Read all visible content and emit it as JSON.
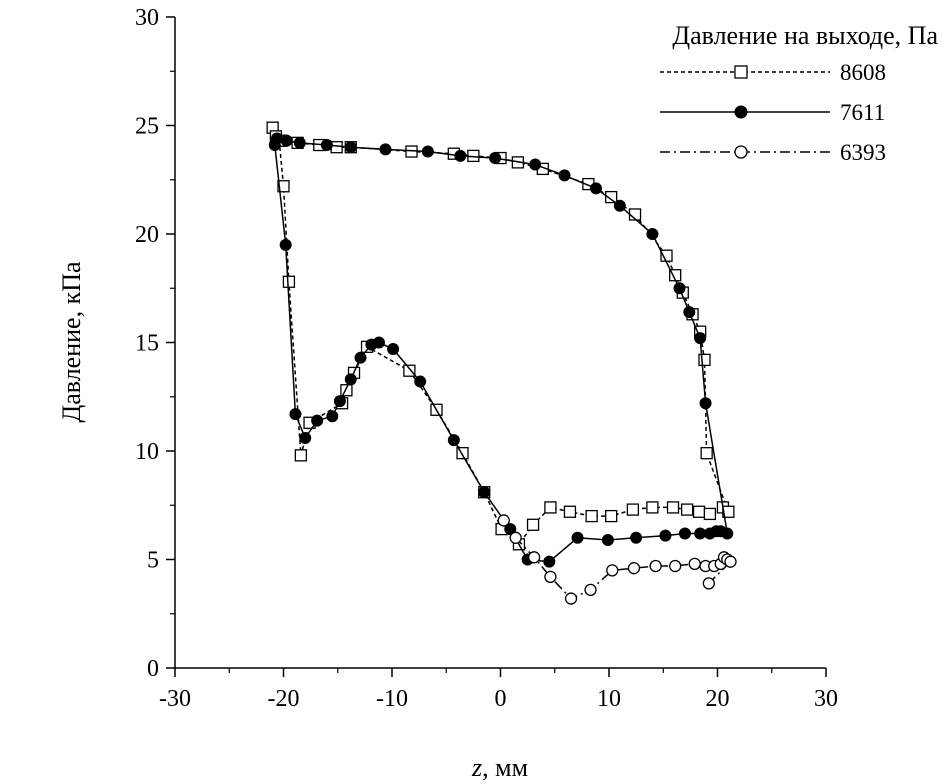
{
  "chart_data": {
    "type": "line",
    "xlabel_var": "z",
    "xlabel_unit": ", мм",
    "ylabel": "Давление, кПа",
    "xlim": [
      -30,
      30
    ],
    "ylim": [
      0,
      30
    ],
    "xticks": [
      -30,
      -20,
      -10,
      0,
      10,
      20,
      30
    ],
    "yticks": [
      0,
      5,
      10,
      15,
      20,
      25,
      30
    ],
    "grid": false,
    "legend": {
      "title": "Давление на выходе, Па",
      "placement": "top-right"
    },
    "series": [
      {
        "name": "8608",
        "line": "dashed",
        "marker": "square-open",
        "points": [
          [
            -21.0,
            24.9
          ],
          [
            -20.7,
            24.5
          ],
          [
            -20.4,
            24.3
          ],
          [
            -20.0,
            22.2
          ],
          [
            -19.5,
            17.8
          ],
          [
            -18.4,
            9.8
          ],
          [
            -17.6,
            11.3
          ],
          [
            -14.6,
            12.2
          ],
          [
            -14.2,
            12.8
          ],
          [
            -13.5,
            13.6
          ],
          [
            -12.3,
            14.8
          ],
          [
            -8.4,
            13.7
          ],
          [
            -5.9,
            11.9
          ],
          [
            -3.5,
            9.9
          ],
          [
            -1.5,
            8.1
          ],
          [
            0.1,
            6.4
          ],
          [
            1.7,
            5.7
          ],
          [
            3.0,
            6.6
          ],
          [
            4.6,
            7.4
          ],
          [
            6.4,
            7.2
          ],
          [
            8.4,
            7.0
          ],
          [
            10.2,
            7.0
          ],
          [
            12.2,
            7.3
          ],
          [
            14.0,
            7.4
          ],
          [
            15.9,
            7.4
          ],
          [
            17.2,
            7.3
          ],
          [
            18.3,
            7.2
          ],
          [
            19.3,
            7.1
          ],
          [
            20.5,
            7.4
          ],
          [
            21.0,
            7.2
          ],
          [
            19.0,
            9.9
          ],
          [
            18.8,
            14.2
          ],
          [
            18.4,
            15.5
          ],
          [
            17.7,
            16.3
          ],
          [
            16.8,
            17.3
          ],
          [
            16.1,
            18.1
          ],
          [
            15.3,
            19.0
          ],
          [
            12.4,
            20.9
          ],
          [
            10.2,
            21.7
          ],
          [
            8.1,
            22.3
          ],
          [
            3.9,
            23.0
          ],
          [
            1.6,
            23.3
          ],
          [
            0.0,
            23.5
          ],
          [
            -2.5,
            23.6
          ],
          [
            -4.3,
            23.7
          ],
          [
            -8.2,
            23.8
          ],
          [
            -13.8,
            24.0
          ],
          [
            -15.1,
            24.0
          ],
          [
            -16.7,
            24.1
          ],
          [
            -18.7,
            24.2
          ],
          [
            -20.2,
            24.3
          ]
        ]
      },
      {
        "name": "7611",
        "line": "solid",
        "marker": "circle-filled",
        "points": [
          [
            -20.8,
            24.1
          ],
          [
            -19.8,
            19.5
          ],
          [
            -18.9,
            11.7
          ],
          [
            -18.0,
            10.6
          ],
          [
            -16.9,
            11.4
          ],
          [
            -15.5,
            11.6
          ],
          [
            -14.8,
            12.3
          ],
          [
            -13.8,
            13.3
          ],
          [
            -12.9,
            14.3
          ],
          [
            -11.9,
            14.9
          ],
          [
            -11.2,
            15.0
          ],
          [
            -9.9,
            14.7
          ],
          [
            -7.4,
            13.2
          ],
          [
            -4.3,
            10.5
          ],
          [
            -1.5,
            8.1
          ],
          [
            0.9,
            6.4
          ],
          [
            2.5,
            5.0
          ],
          [
            4.5,
            4.9
          ],
          [
            7.1,
            6.0
          ],
          [
            9.9,
            5.9
          ],
          [
            12.5,
            6.0
          ],
          [
            15.2,
            6.1
          ],
          [
            17.0,
            6.2
          ],
          [
            18.4,
            6.2
          ],
          [
            19.3,
            6.2
          ],
          [
            19.9,
            6.3
          ],
          [
            20.3,
            6.3
          ],
          [
            20.9,
            6.2
          ],
          [
            18.9,
            12.2
          ],
          [
            18.4,
            15.2
          ],
          [
            17.4,
            16.4
          ],
          [
            16.5,
            17.5
          ],
          [
            14.0,
            20.0
          ],
          [
            11.0,
            21.3
          ],
          [
            8.8,
            22.1
          ],
          [
            5.9,
            22.7
          ],
          [
            3.2,
            23.2
          ],
          [
            -0.5,
            23.5
          ],
          [
            -3.7,
            23.6
          ],
          [
            -6.7,
            23.8
          ],
          [
            -10.6,
            23.9
          ],
          [
            -13.8,
            24.0
          ],
          [
            -16.0,
            24.1
          ],
          [
            -18.5,
            24.2
          ],
          [
            -19.7,
            24.3
          ],
          [
            -20.6,
            24.4
          ]
        ]
      },
      {
        "name": "6393",
        "line": "dashdot",
        "marker": "circle-open",
        "points": [
          [
            0.3,
            6.8
          ],
          [
            1.4,
            6.0
          ],
          [
            3.1,
            5.1
          ],
          [
            4.6,
            4.2
          ],
          [
            6.5,
            3.2
          ],
          [
            8.3,
            3.6
          ],
          [
            10.3,
            4.5
          ],
          [
            12.3,
            4.6
          ],
          [
            14.3,
            4.7
          ],
          [
            16.1,
            4.7
          ],
          [
            17.9,
            4.8
          ],
          [
            18.9,
            4.7
          ],
          [
            19.7,
            4.7
          ],
          [
            20.3,
            4.8
          ],
          [
            20.6,
            5.1
          ],
          [
            20.9,
            5.0
          ],
          [
            21.2,
            4.9
          ],
          [
            19.2,
            3.9
          ]
        ]
      }
    ]
  }
}
